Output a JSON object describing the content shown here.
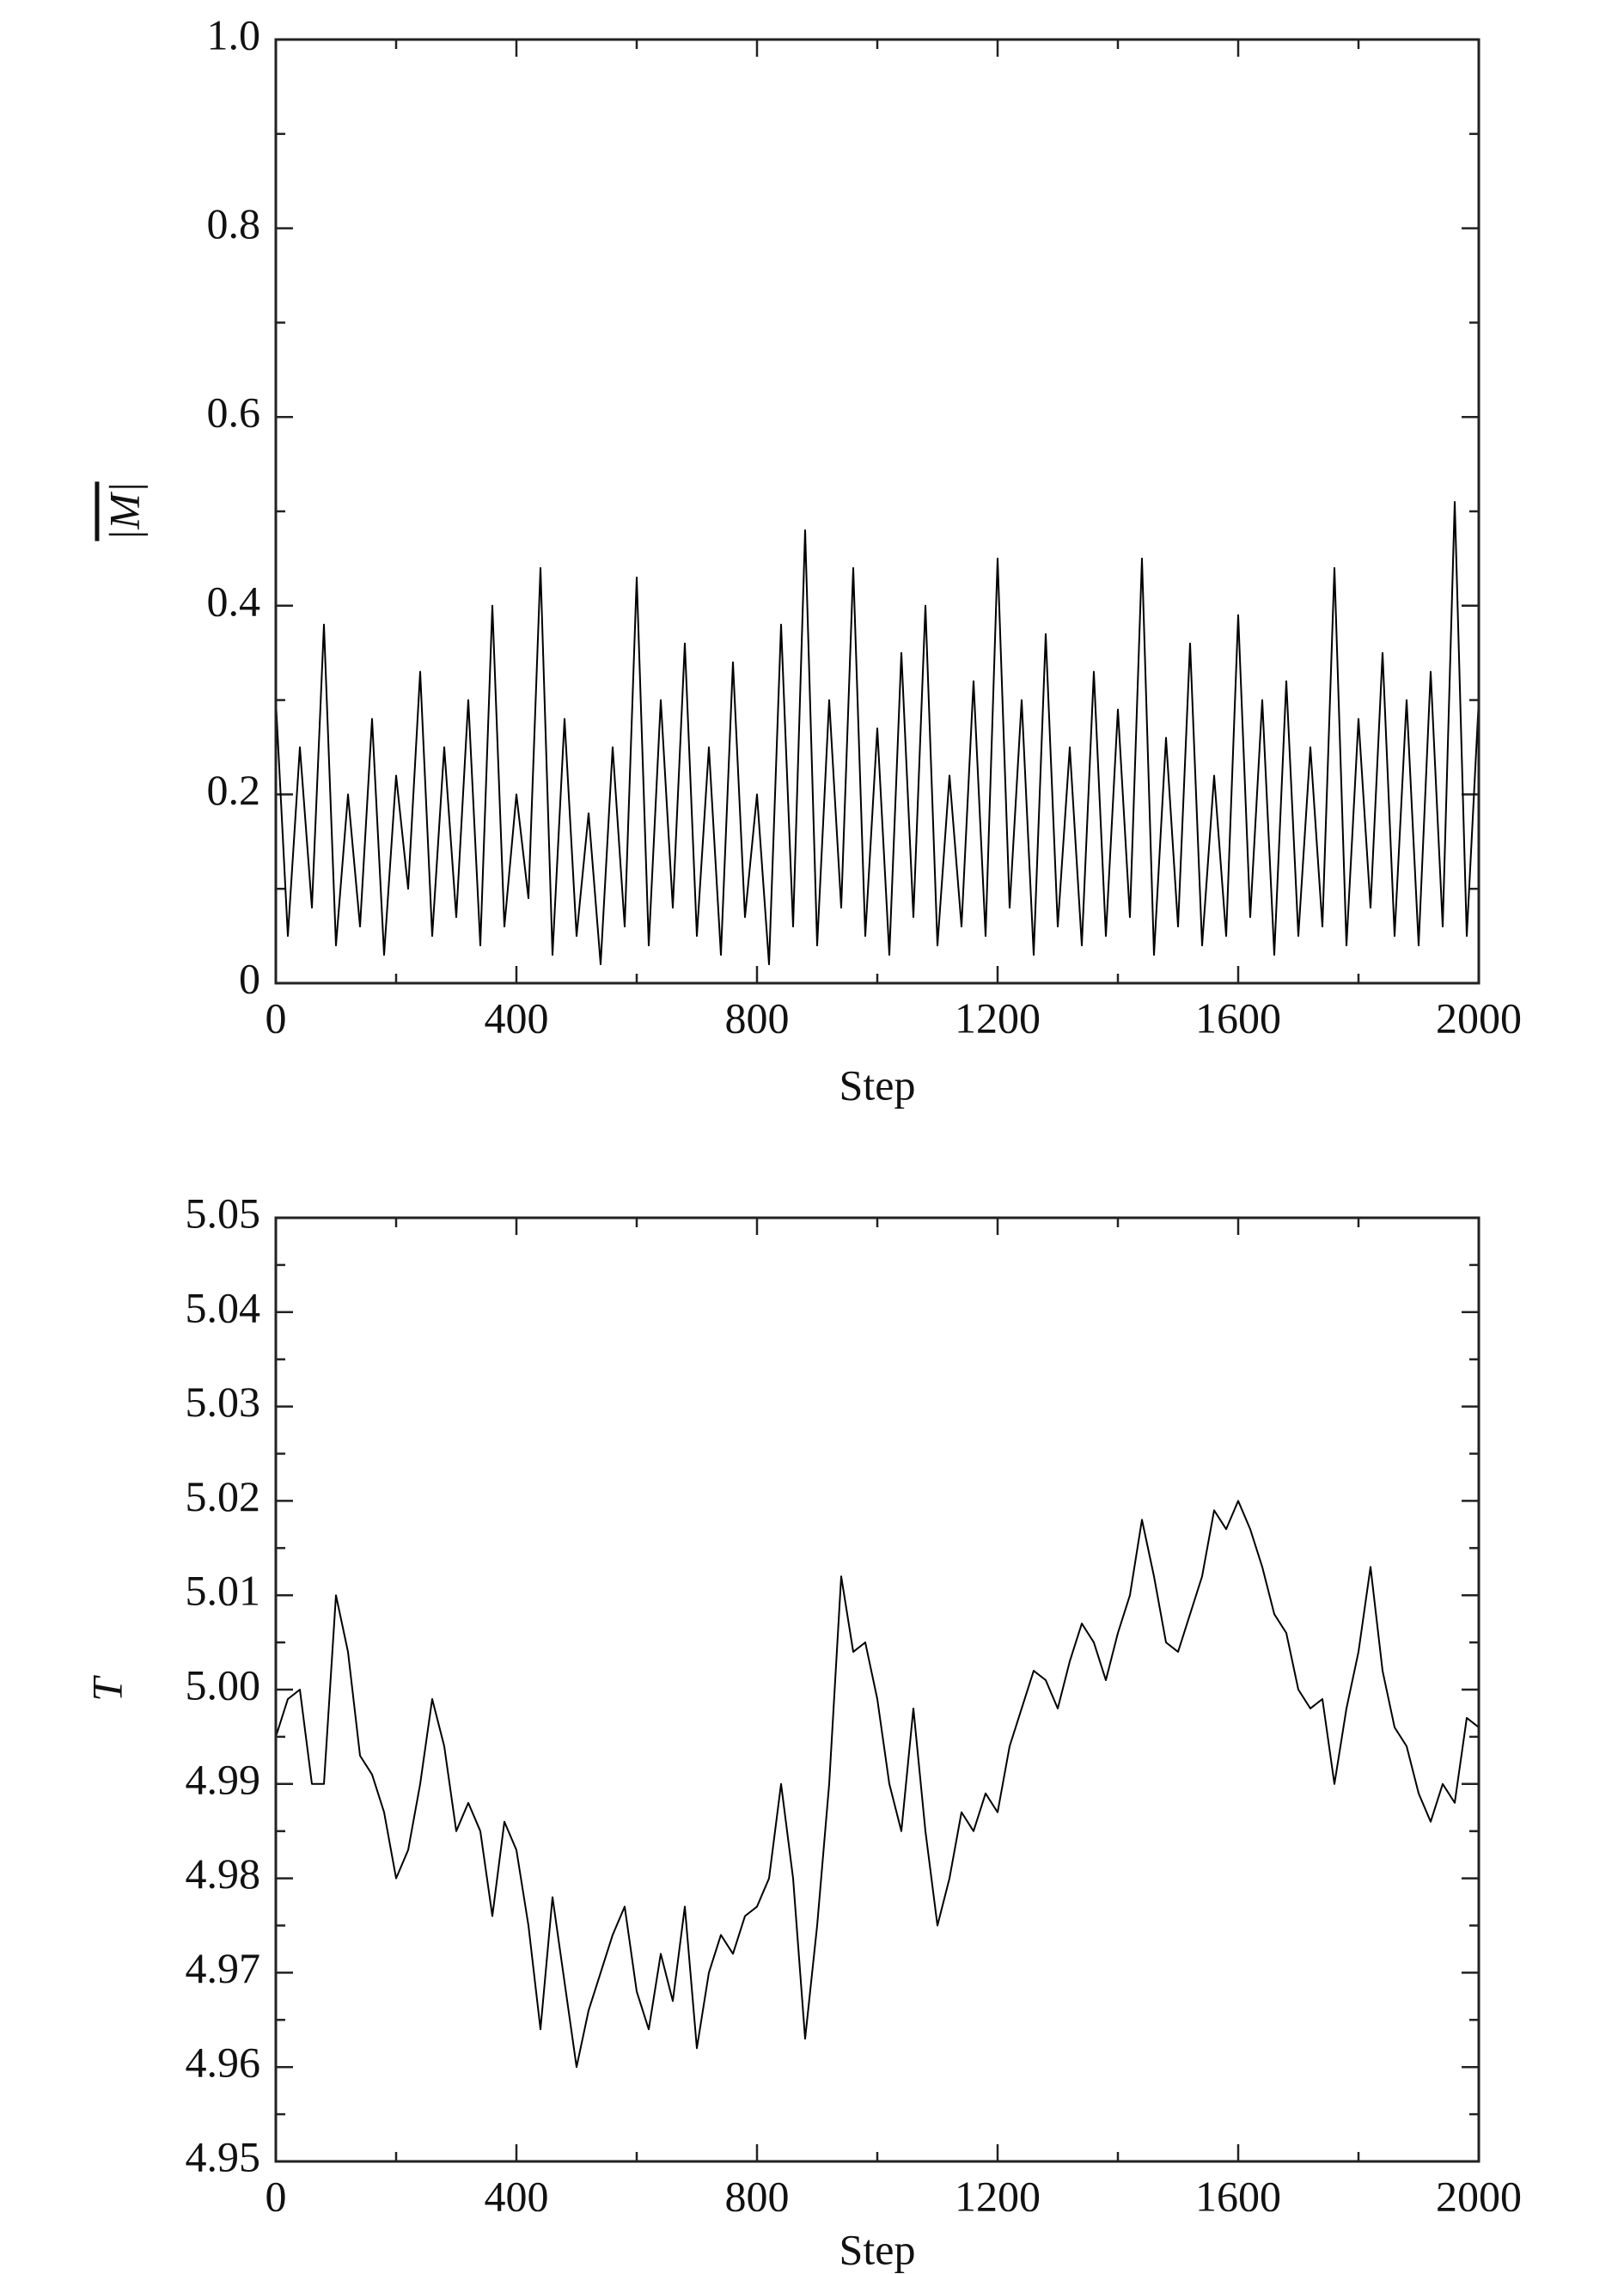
{
  "chart_data": [
    {
      "type": "line",
      "xlabel": "Step",
      "ylabel": "|M|",
      "color": "#000000",
      "xlim": [
        0,
        2000
      ],
      "xticks": [
        0,
        400,
        800,
        1200,
        1600,
        2000
      ],
      "ylim": [
        0,
        1
      ],
      "yticks": [
        0,
        0.2,
        0.4,
        0.6,
        0.8,
        {
          "value": 1,
          "label": "1.0"
        }
      ],
      "x": [
        0,
        20,
        40,
        60,
        80,
        100,
        120,
        140,
        160,
        180,
        200,
        220,
        240,
        260,
        280,
        300,
        320,
        340,
        360,
        380,
        400,
        420,
        440,
        460,
        480,
        500,
        520,
        540,
        560,
        580,
        600,
        620,
        640,
        660,
        680,
        700,
        720,
        740,
        760,
        780,
        800,
        820,
        840,
        860,
        880,
        900,
        920,
        940,
        960,
        980,
        1000,
        1020,
        1040,
        1060,
        1080,
        1100,
        1120,
        1140,
        1160,
        1180,
        1200,
        1220,
        1240,
        1260,
        1280,
        1300,
        1320,
        1340,
        1360,
        1380,
        1400,
        1420,
        1440,
        1460,
        1480,
        1500,
        1520,
        1540,
        1560,
        1580,
        1600,
        1620,
        1640,
        1660,
        1680,
        1700,
        1720,
        1740,
        1760,
        1780,
        1800,
        1820,
        1840,
        1860,
        1880,
        1900,
        1920,
        1940,
        1960,
        1980,
        2000
      ],
      "values": [
        0.3,
        0.05,
        0.25,
        0.08,
        0.38,
        0.04,
        0.2,
        0.06,
        0.28,
        0.03,
        0.22,
        0.1,
        0.33,
        0.05,
        0.25,
        0.07,
        0.3,
        0.04,
        0.4,
        0.06,
        0.2,
        0.09,
        0.44,
        0.03,
        0.28,
        0.05,
        0.18,
        0.02,
        0.25,
        0.06,
        0.43,
        0.04,
        0.3,
        0.08,
        0.36,
        0.05,
        0.25,
        0.03,
        0.34,
        0.07,
        0.2,
        0.02,
        0.38,
        0.06,
        0.48,
        0.04,
        0.3,
        0.08,
        0.44,
        0.05,
        0.27,
        0.03,
        0.35,
        0.07,
        0.4,
        0.04,
        0.22,
        0.06,
        0.32,
        0.05,
        0.45,
        0.08,
        0.3,
        0.03,
        0.37,
        0.06,
        0.25,
        0.04,
        0.33,
        0.05,
        0.29,
        0.07,
        0.45,
        0.03,
        0.26,
        0.06,
        0.36,
        0.04,
        0.22,
        0.05,
        0.39,
        0.07,
        0.3,
        0.03,
        0.32,
        0.05,
        0.25,
        0.06,
        0.44,
        0.04,
        0.28,
        0.08,
        0.35,
        0.05,
        0.3,
        0.04,
        0.33,
        0.06,
        0.51,
        0.05,
        0.3
      ]
    },
    {
      "type": "line",
      "xlabel": "Step",
      "ylabel": "T",
      "color": "#000000",
      "xlim": [
        0,
        2000
      ],
      "xticks": [
        0,
        400,
        800,
        1200,
        1600,
        2000
      ],
      "ylim": [
        4.95,
        5.05
      ],
      "yticks": [
        4.95,
        4.96,
        4.97,
        4.98,
        4.99,
        {
          "value": 5,
          "label": "5.00"
        },
        5.01,
        5.02,
        5.03,
        5.04,
        5.05
      ],
      "x": [
        0,
        20,
        40,
        60,
        80,
        100,
        120,
        140,
        160,
        180,
        200,
        220,
        240,
        260,
        280,
        300,
        320,
        340,
        360,
        380,
        400,
        420,
        440,
        460,
        480,
        500,
        520,
        540,
        560,
        580,
        600,
        620,
        640,
        660,
        680,
        700,
        720,
        740,
        760,
        780,
        800,
        820,
        840,
        860,
        880,
        900,
        920,
        940,
        960,
        980,
        1000,
        1020,
        1040,
        1060,
        1080,
        1100,
        1120,
        1140,
        1160,
        1180,
        1200,
        1220,
        1240,
        1260,
        1280,
        1300,
        1320,
        1340,
        1360,
        1380,
        1400,
        1420,
        1440,
        1460,
        1480,
        1500,
        1520,
        1540,
        1560,
        1580,
        1600,
        1620,
        1640,
        1660,
        1680,
        1700,
        1720,
        1740,
        1760,
        1780,
        1800,
        1820,
        1840,
        1860,
        1880,
        1900,
        1920,
        1940,
        1960,
        1980,
        2000
      ],
      "values": [
        4.995,
        4.999,
        5.0,
        4.99,
        4.99,
        5.01,
        5.004,
        4.993,
        4.991,
        4.987,
        4.98,
        4.983,
        4.99,
        4.999,
        4.994,
        4.985,
        4.988,
        4.985,
        4.976,
        4.986,
        4.983,
        4.975,
        4.964,
        4.978,
        4.969,
        4.96,
        4.966,
        4.97,
        4.974,
        4.977,
        4.968,
        4.964,
        4.972,
        4.967,
        4.977,
        4.962,
        4.97,
        4.974,
        4.972,
        4.976,
        4.977,
        4.98,
        4.99,
        4.98,
        4.963,
        4.975,
        4.99,
        5.012,
        5.004,
        5.005,
        4.999,
        4.99,
        4.985,
        4.998,
        4.985,
        4.975,
        4.98,
        4.987,
        4.985,
        4.989,
        4.987,
        4.994,
        4.998,
        5.002,
        5.001,
        4.998,
        5.003,
        5.007,
        5.005,
        5.001,
        5.006,
        5.01,
        5.018,
        5.012,
        5.005,
        5.004,
        5.008,
        5.012,
        5.019,
        5.017,
        5.02,
        5.017,
        5.013,
        5.008,
        5.006,
        5.0,
        4.998,
        4.999,
        4.99,
        4.998,
        5.004,
        5.013,
        5.002,
        4.996,
        4.994,
        4.989,
        4.986,
        4.99,
        4.988,
        4.997,
        4.996
      ]
    }
  ]
}
